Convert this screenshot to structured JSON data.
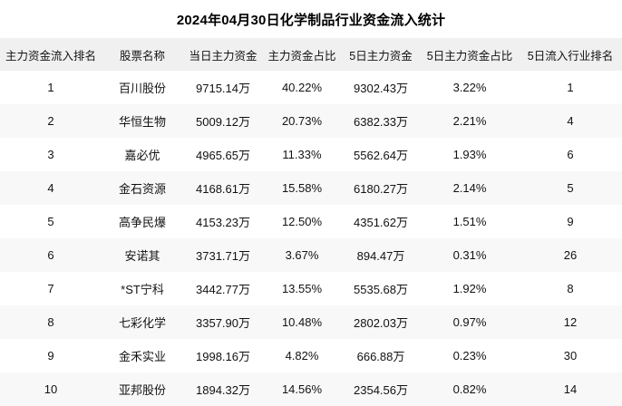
{
  "chart_data": {
    "type": "table",
    "title": "2024年04月30日化学制品行业资金流入统计",
    "columns": [
      "主力资金流入排名",
      "股票名称",
      "当日主力资金",
      "主力资金占比",
      "5日主力资金",
      "5日主力资金占比",
      "5日流入行业排名"
    ],
    "rows": [
      [
        "1",
        "百川股份",
        "9715.14万",
        "40.22%",
        "9302.43万",
        "3.22%",
        "1"
      ],
      [
        "2",
        "华恒生物",
        "5009.12万",
        "20.73%",
        "6382.33万",
        "2.21%",
        "4"
      ],
      [
        "3",
        "嘉必优",
        "4965.65万",
        "11.33%",
        "5562.64万",
        "1.93%",
        "6"
      ],
      [
        "4",
        "金石资源",
        "4168.61万",
        "15.58%",
        "6180.27万",
        "2.14%",
        "5"
      ],
      [
        "5",
        "高争民爆",
        "4153.23万",
        "12.50%",
        "4351.62万",
        "1.51%",
        "9"
      ],
      [
        "6",
        "安诺其",
        "3731.71万",
        "3.67%",
        "894.47万",
        "0.31%",
        "26"
      ],
      [
        "7",
        "*ST宁科",
        "3442.77万",
        "13.55%",
        "5535.68万",
        "1.92%",
        "8"
      ],
      [
        "8",
        "七彩化学",
        "3357.90万",
        "10.48%",
        "2802.03万",
        "0.97%",
        "12"
      ],
      [
        "9",
        "金禾实业",
        "1998.16万",
        "4.82%",
        "666.88万",
        "0.23%",
        "30"
      ],
      [
        "10",
        "亚邦股份",
        "1894.32万",
        "14.56%",
        "2354.56万",
        "0.82%",
        "14"
      ]
    ],
    "layout": {
      "grid": false,
      "row_striping": true
    }
  },
  "colors": {
    "header_bg": "#f0f0f0",
    "row_alt_bg": "#f8f8f8",
    "row_bg": "#ffffff",
    "text": "#121212",
    "title_text": "#000000"
  }
}
